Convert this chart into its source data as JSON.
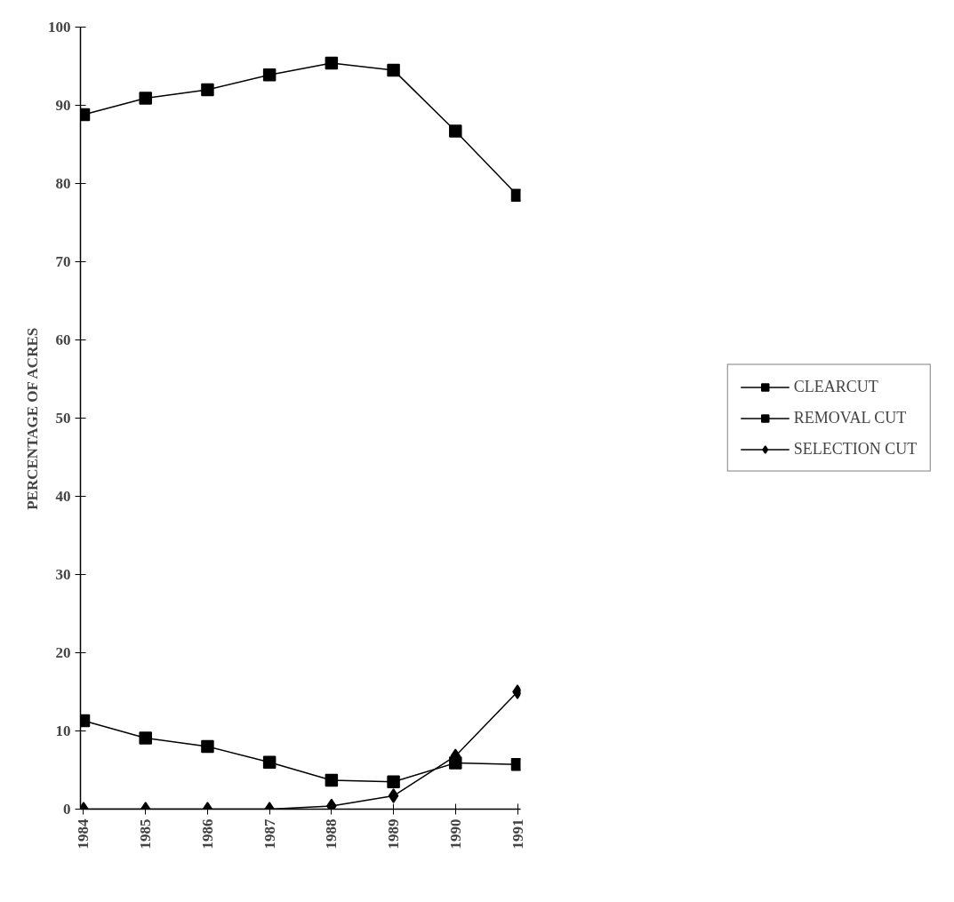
{
  "chart_data": {
    "type": "line",
    "ylabel": "PERCENTAGE OF ACRES",
    "categories": [
      "1984",
      "1985",
      "1986",
      "1987",
      "1988",
      "1989",
      "1990",
      "1991"
    ],
    "series": [
      {
        "name": "CLEARCUT",
        "color": "#000000",
        "marker": "square",
        "values": [
          88.8,
          90.9,
          92.0,
          93.9,
          95.4,
          94.5,
          86.7,
          78.5
        ]
      },
      {
        "name": "REMOVAL CUT",
        "color": "#000000",
        "marker": "square",
        "values": [
          11.3,
          9.1,
          8.0,
          6.0,
          3.7,
          3.5,
          5.9,
          5.7
        ]
      },
      {
        "name": "SELECTION CUT",
        "color": "#000000",
        "marker": "diamond",
        "values": [
          0,
          0,
          0,
          0,
          0.4,
          1.7,
          6.8,
          15.0
        ]
      }
    ],
    "ylim": [
      0,
      100
    ],
    "yticks": [
      0,
      10,
      20,
      30,
      40,
      50,
      60,
      70,
      80,
      90,
      100
    ],
    "grid": false,
    "legend": "right",
    "line_style": "solid"
  }
}
